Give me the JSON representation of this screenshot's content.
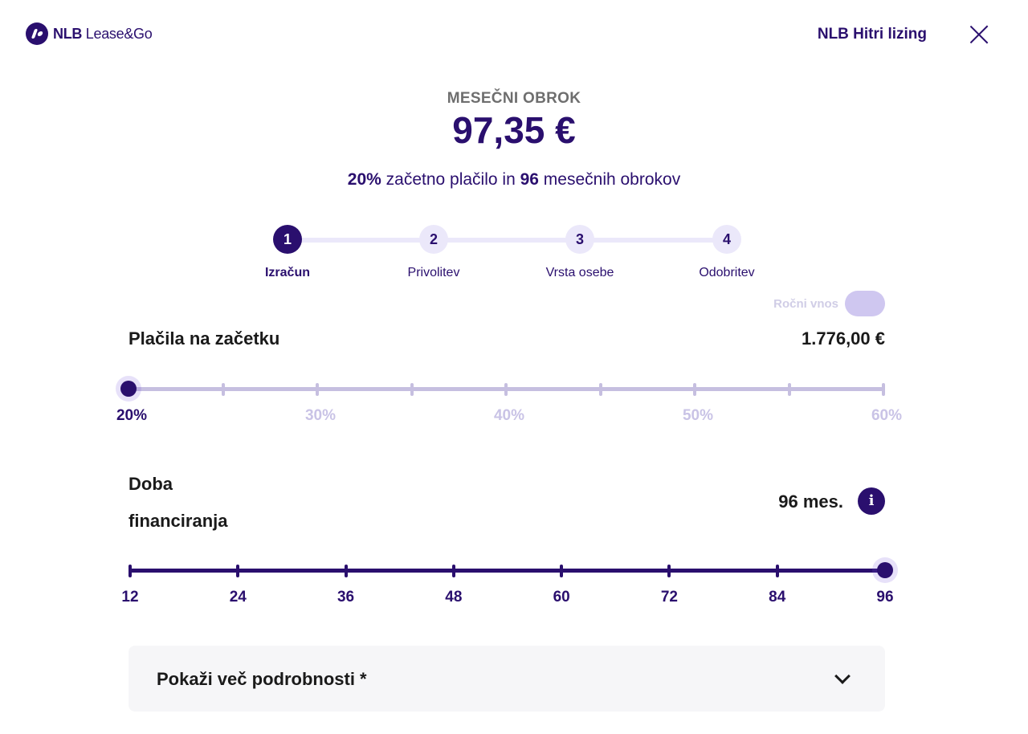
{
  "header": {
    "logo_bold": "NLB",
    "logo_text": " Lease&Go",
    "link_label": "NLB Hitri lizing"
  },
  "summary": {
    "label": "MESEČNI OBROK",
    "amount": "97,35 €",
    "down_payment_pct": "20%",
    "desc_mid": " začetno plačilo in ",
    "months": "96",
    "desc_end": " mesečnih obrokov"
  },
  "stepper": {
    "steps": [
      {
        "number": "1",
        "label": "Izračun",
        "active": true
      },
      {
        "number": "2",
        "label": "Privolitev",
        "active": false
      },
      {
        "number": "3",
        "label": "Vrsta osebe",
        "active": false
      },
      {
        "number": "4",
        "label": "Odobritev",
        "active": false
      }
    ]
  },
  "toggle": {
    "label": "Ročni vnos",
    "on": false
  },
  "down_payment": {
    "title": "Plačila na začetku",
    "value": "1.776,00 €",
    "selected_percent": 20,
    "range": [
      20,
      60
    ],
    "tick_labels": [
      "20%",
      "30%",
      "40%",
      "50%",
      "60%"
    ]
  },
  "period": {
    "title_line1": "Doba",
    "title_line2": "financiranja",
    "value": "96 mes.",
    "info_icon_glyph": "i",
    "selected_months": 96,
    "range": [
      12,
      96
    ],
    "tick_labels": [
      "12",
      "24",
      "36",
      "48",
      "60",
      "72",
      "84",
      "96"
    ]
  },
  "details": {
    "label": "Pokaži več podrobnosti *"
  },
  "colors": {
    "brand": "#2a0f6e",
    "track_inactive": "#c6bfe0",
    "label_inactive": "#c9c3e6",
    "step_inactive": "#ebe8fa"
  }
}
